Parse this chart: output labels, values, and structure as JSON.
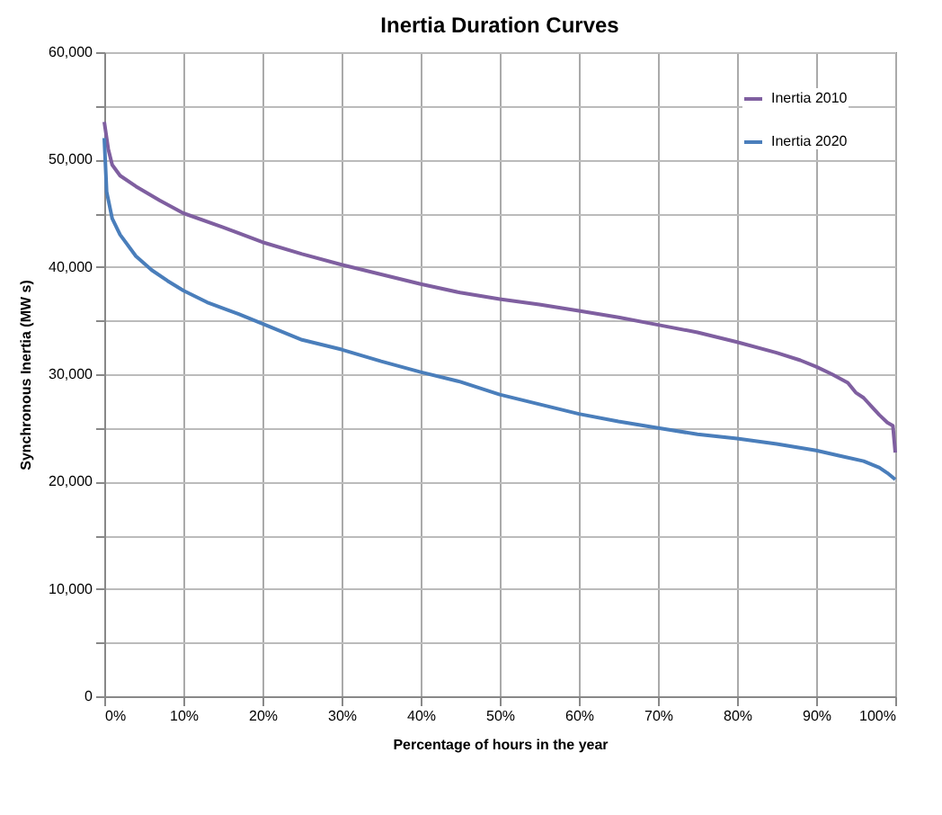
{
  "chart_data": {
    "type": "line",
    "title": "Inertia Duration Curves",
    "xlabel": "Percentage of hours in the year",
    "ylabel": "Synchronous Inertia (MW s)",
    "xlim": [
      0,
      100
    ],
    "xticks": [
      {
        "value": 0,
        "label": "0%"
      },
      {
        "value": 10,
        "label": "10%"
      },
      {
        "value": 20,
        "label": "20%"
      },
      {
        "value": 30,
        "label": "30%"
      },
      {
        "value": 40,
        "label": "40%"
      },
      {
        "value": 50,
        "label": "50%"
      },
      {
        "value": 60,
        "label": "60%"
      },
      {
        "value": 70,
        "label": "70%"
      },
      {
        "value": 80,
        "label": "80%"
      },
      {
        "value": 90,
        "label": "90%"
      },
      {
        "value": 100,
        "label": "100%"
      }
    ],
    "ylim": [
      0,
      60000
    ],
    "yticks": [
      {
        "value": 0,
        "label": "0"
      },
      {
        "value": 5000,
        "label": null
      },
      {
        "value": 10000,
        "label": "10,000"
      },
      {
        "value": 15000,
        "label": null
      },
      {
        "value": 20000,
        "label": "20,000"
      },
      {
        "value": 25000,
        "label": null
      },
      {
        "value": 30000,
        "label": "30,000"
      },
      {
        "value": 35000,
        "label": null
      },
      {
        "value": 40000,
        "label": "40,000"
      },
      {
        "value": 45000,
        "label": null
      },
      {
        "value": 50000,
        "label": "50,000"
      },
      {
        "value": 55000,
        "label": null
      },
      {
        "value": 60000,
        "label": "60,000"
      }
    ],
    "grid": true,
    "legend": "top right",
    "marker": "none",
    "line_style": "solid",
    "series": [
      {
        "name": "Inertia 2010",
        "color": "#7f5fa0",
        "x": [
          0,
          0.5,
          1,
          2,
          4,
          7,
          10,
          15,
          20,
          25,
          30,
          35,
          40,
          45,
          50,
          55,
          60,
          65,
          70,
          75,
          80,
          85,
          88,
          90,
          92,
          94,
          95,
          96,
          97,
          98,
          99,
          99.7,
          100
        ],
        "values": [
          53500,
          51000,
          49500,
          48500,
          47500,
          46200,
          45000,
          43700,
          42300,
          41200,
          40200,
          39300,
          38400,
          37600,
          37000,
          36500,
          35900,
          35300,
          34600,
          33900,
          33000,
          32000,
          31300,
          30700,
          30000,
          29200,
          28300,
          27800,
          27000,
          26200,
          25500,
          25200,
          22700
        ]
      },
      {
        "name": "Inertia 2020",
        "color": "#4a7ebb",
        "x": [
          0,
          0.3,
          1,
          2,
          4,
          6,
          8,
          10,
          13,
          17,
          20,
          25,
          30,
          35,
          40,
          45,
          50,
          55,
          60,
          65,
          70,
          75,
          80,
          85,
          90,
          93,
          96,
          98,
          99,
          100
        ],
        "values": [
          52000,
          47000,
          44500,
          43000,
          41000,
          39700,
          38700,
          37800,
          36700,
          35600,
          34700,
          33200,
          32300,
          31200,
          30200,
          29300,
          28100,
          27200,
          26300,
          25600,
          25000,
          24400,
          24000,
          23500,
          22900,
          22400,
          21900,
          21300,
          20800,
          20200
        ]
      }
    ]
  }
}
